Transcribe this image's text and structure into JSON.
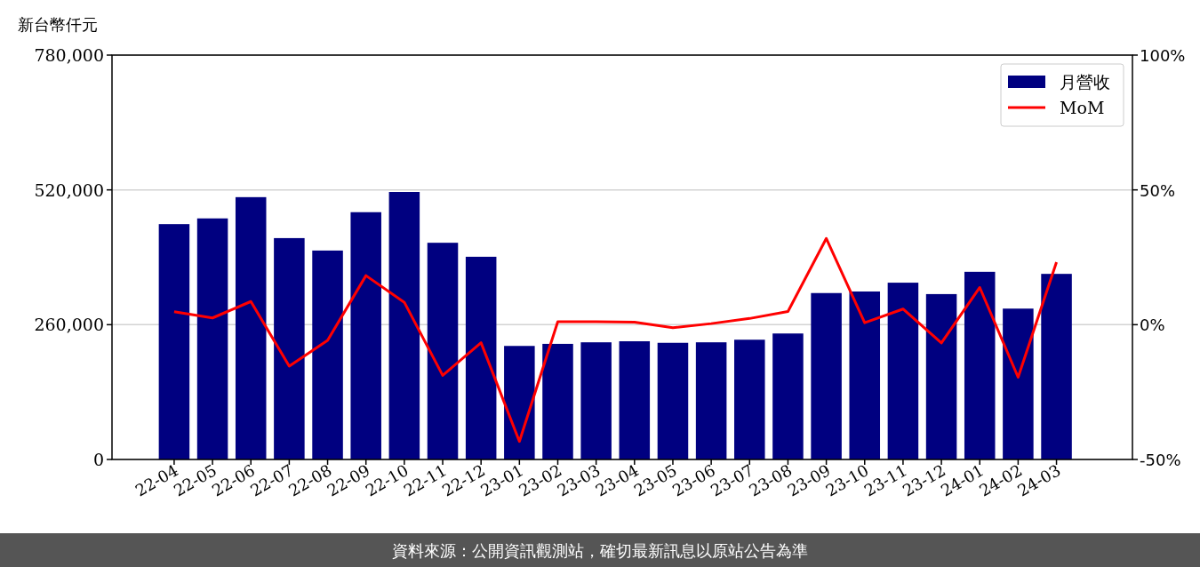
{
  "chart_data": {
    "type": "bar",
    "ylabel": "新台幣仟元",
    "categories": [
      "22-04",
      "22-05",
      "22-06",
      "22-07",
      "22-08",
      "22-09",
      "22-10",
      "22-11",
      "22-12",
      "23-01",
      "23-02",
      "23-03",
      "23-04",
      "23-05",
      "23-06",
      "23-07",
      "23-08",
      "23-09",
      "23-10",
      "23-11",
      "23-12",
      "24-01",
      "24-02",
      "24-03"
    ],
    "series": [
      {
        "name": "月營收",
        "color": "#000080",
        "values": [
          454000,
          465000,
          506000,
          427000,
          403000,
          477000,
          516000,
          418000,
          391000,
          219000,
          223000,
          226000,
          228000,
          225000,
          226000,
          231000,
          243000,
          321000,
          324000,
          341000,
          319000,
          362000,
          291000,
          358000
        ]
      },
      {
        "name": "MoM",
        "type": "line",
        "axis": "y2",
        "color": "#ff0000",
        "values": [
          4.8,
          2.5,
          8.6,
          -15.4,
          -5.8,
          18.2,
          8.3,
          -18.8,
          -6.7,
          -43.3,
          1.1,
          1.1,
          0.9,
          -1.1,
          0.4,
          2.3,
          4.9,
          32.0,
          0.7,
          5.8,
          -6.8,
          13.8,
          -19.5,
          23.2
        ]
      }
    ],
    "ylim": [
      0,
      780000
    ],
    "yticks": [
      {
        "value": 0,
        "label": "0"
      },
      {
        "value": 260000,
        "label": "260,000"
      },
      {
        "value": 520000,
        "label": "520,000"
      },
      {
        "value": 780000,
        "label": "780,000"
      }
    ],
    "y2lim": [
      -50,
      100
    ],
    "y2ticks": [
      {
        "value": -50,
        "label": "-50%"
      },
      {
        "value": 0,
        "label": "0%"
      },
      {
        "value": 50,
        "label": "50%"
      },
      {
        "value": 100,
        "label": "100%"
      }
    ],
    "grid": "y",
    "legend": "top right",
    "annotations": [
      "資料來源：公開資訊觀測站，確切最新訊息以原站公告為準"
    ]
  }
}
